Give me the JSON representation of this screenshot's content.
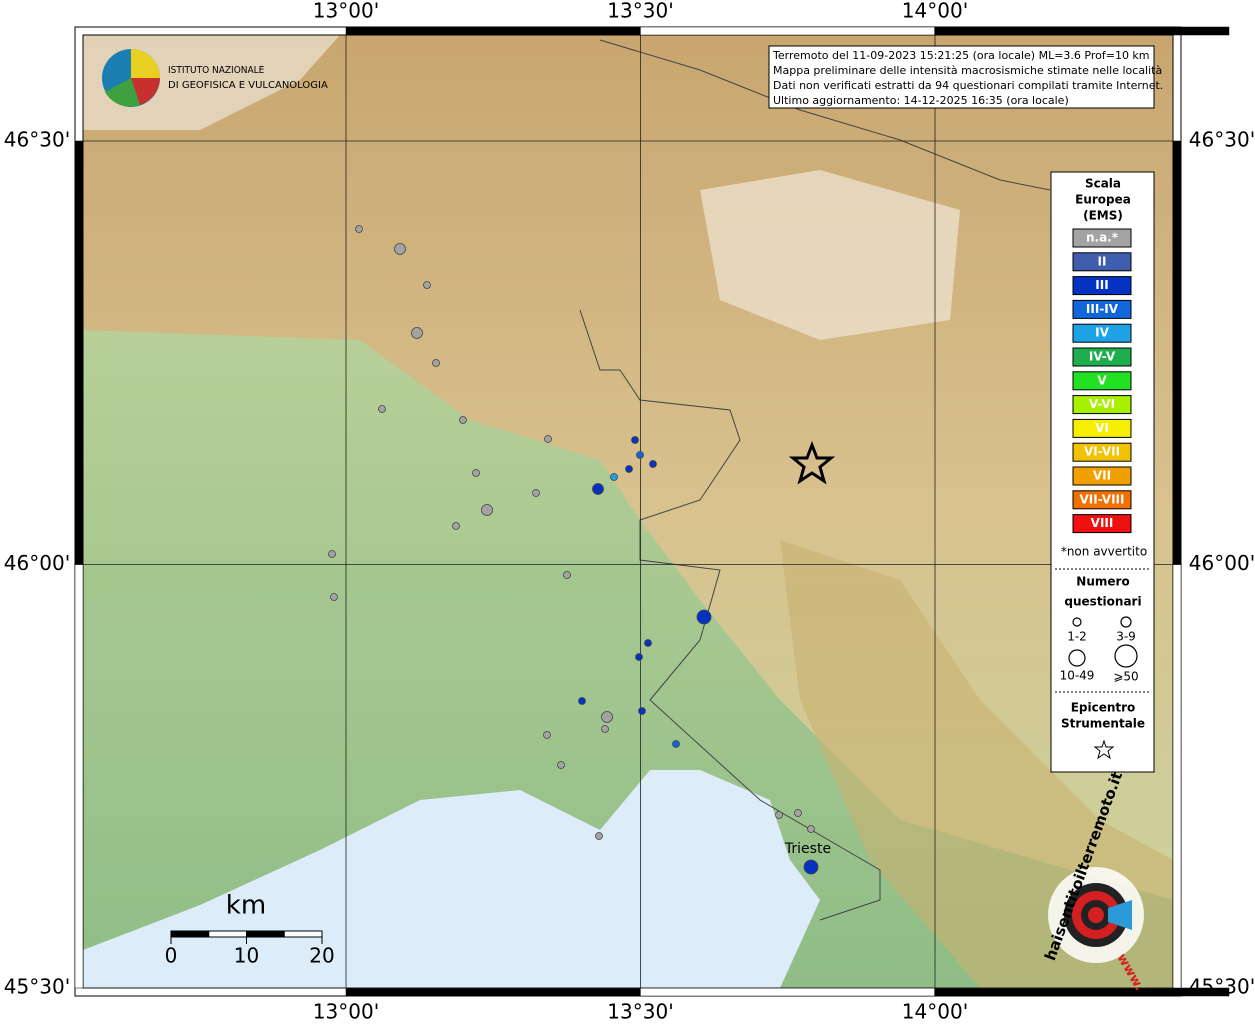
{
  "map": {
    "info_box": [
      "Terremoto del 11-09-2023 15:21:25 (ora locale) ML=3.6 Prof=10 km",
      "Mappa preliminare delle intensità macrosismiche stimate nelle località",
      "Dati non verificati estratti da 94 questionari compilati tramite Internet.",
      "Ultimo aggiornamento: 14-12-2025 16:35 (ora locale)"
    ],
    "logo_ingv": [
      "ISTITUTO NAZIONALE",
      "DI GEOFISICA E VULCANOLOGIA"
    ],
    "lon_ticks": [
      {
        "value": 13.0,
        "label": "13°00'"
      },
      {
        "value": 13.5,
        "label": "13°30'"
      },
      {
        "value": 14.0,
        "label": "14°00'"
      }
    ],
    "lat_ticks": [
      {
        "value": 45.5,
        "label": "45°30'"
      },
      {
        "value": 46.0,
        "label": "46°00'"
      },
      {
        "value": 46.5,
        "label": "46°30'"
      }
    ],
    "legend": {
      "title": [
        "Scala",
        "Europea",
        "(EMS)"
      ],
      "classes": [
        {
          "label": "n.a.*",
          "color": "#a3a3a3"
        },
        {
          "label": "II",
          "color": "#3f5fae"
        },
        {
          "label": "III",
          "color": "#0632c2"
        },
        {
          "label": "III-IV",
          "color": "#1266dc"
        },
        {
          "label": "IV",
          "color": "#1ea2e6"
        },
        {
          "label": "IV-V",
          "color": "#1fae4e"
        },
        {
          "label": "V",
          "color": "#22e022"
        },
        {
          "label": "V-VI",
          "color": "#a6f000"
        },
        {
          "label": "VI",
          "color": "#f6f000"
        },
        {
          "label": "VI-VII",
          "color": "#f2c200"
        },
        {
          "label": "VII",
          "color": "#f2a000"
        },
        {
          "label": "VII-VIII",
          "color": "#f27000"
        },
        {
          "label": "VIII",
          "color": "#f01010"
        }
      ],
      "note": "*non avvertito",
      "size_title": [
        "Numero",
        "questionari"
      ],
      "sizes": [
        "1-2",
        "3-9",
        "10-49",
        "⩾50"
      ],
      "epicenter_title": [
        "Epicentro",
        "Strumentale"
      ]
    },
    "place": "Trieste",
    "scale_bar": {
      "unit": "km",
      "ticks": [
        0,
        10,
        20
      ]
    },
    "logo_hsit": [
      "haisentitoilterremoto.it",
      "www."
    ]
  }
}
